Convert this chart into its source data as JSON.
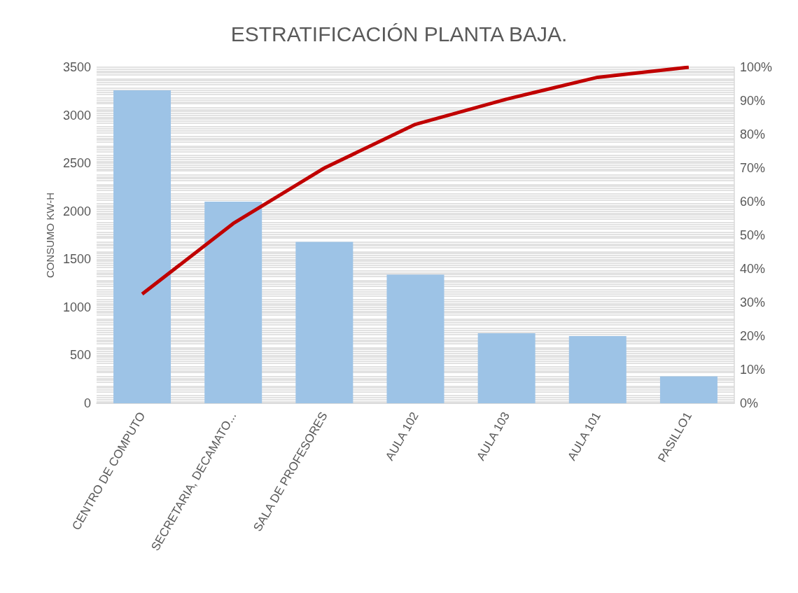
{
  "chart_data": {
    "type": "bar",
    "title": "ESTRATIFICACIÓN PLANTA BAJA.",
    "ylabel": "CONSUMO KW-H",
    "categories": [
      "CENTRO DE COMPUTO",
      "SECRETARIA, DECAMATO...",
      "SALA DE PROFESORES",
      "AULA 102",
      "AULA 103",
      "AULA 101",
      "PASILLO1"
    ],
    "series": [
      {
        "color": "#9dc3e6",
        "values": [
          3260,
          2100,
          1680,
          1340,
          730,
          700,
          280
        ]
      },
      {
        "type": "line",
        "axis": "y2",
        "color": "#c00000",
        "values": [
          32.5,
          53.5,
          70,
          83,
          90.5,
          97,
          100
        ]
      }
    ],
    "ylim": [
      0,
      3500
    ],
    "yticks": [
      0,
      500,
      1000,
      1500,
      2000,
      2500,
      3000,
      3500
    ],
    "y2lim": [
      0,
      100
    ],
    "y2ticks": [
      {
        "value": 0,
        "label": "0%"
      },
      {
        "value": 10,
        "label": "10%"
      },
      {
        "value": 20,
        "label": "20%"
      },
      {
        "value": 30,
        "label": "30%"
      },
      {
        "value": 40,
        "label": "40%"
      },
      {
        "value": 50,
        "label": "50%"
      },
      {
        "value": 60,
        "label": "60%"
      },
      {
        "value": 70,
        "label": "70%"
      },
      {
        "value": 80,
        "label": "80%"
      },
      {
        "value": 90,
        "label": "90%"
      },
      {
        "value": 100,
        "label": "100%"
      }
    ],
    "grid": true,
    "marker": "none"
  }
}
